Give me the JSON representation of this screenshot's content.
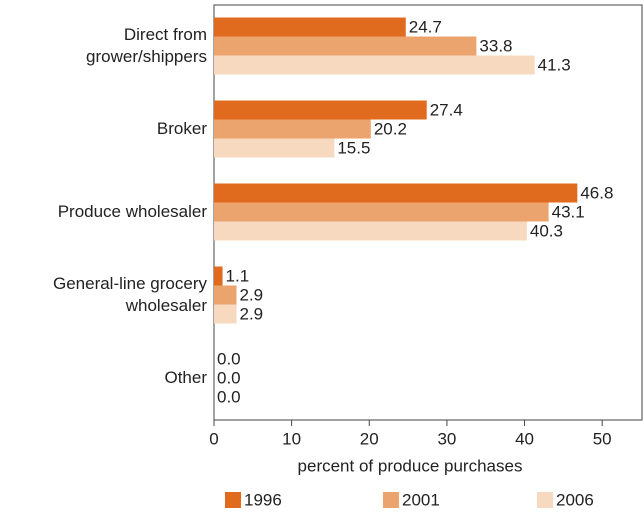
{
  "chart_data": {
    "type": "bar",
    "orientation": "horizontal",
    "categories": [
      "Direct from\ngrower/shippers",
      "Broker",
      "Produce wholesaler",
      "General-line grocery\nwholesaler",
      "Other"
    ],
    "series": [
      {
        "name": "1996",
        "color": "#e06a1e",
        "values": [
          24.7,
          27.4,
          46.8,
          1.1,
          0
        ],
        "value_labels": [
          "24.7",
          "27.4",
          "46.8",
          "1.1",
          "0.0"
        ]
      },
      {
        "name": "2001",
        "color": "#eca46e",
        "values": [
          33.8,
          20.2,
          43.1,
          2.9,
          0
        ],
        "value_labels": [
          "33.8",
          "20.2",
          "43.1",
          "2.9",
          "0.0"
        ]
      },
      {
        "name": "2006",
        "color": "#f7d9c0",
        "values": [
          41.3,
          15.5,
          40.3,
          2.9,
          0
        ],
        "value_labels": [
          "41.3",
          "15.5",
          "40.3",
          "2.9",
          "0.0"
        ]
      }
    ],
    "xlabel": "percent of produce purchases",
    "xlim": [
      0,
      55
    ],
    "xticks": [
      0,
      10,
      20,
      30,
      40,
      50
    ],
    "grid": false
  }
}
